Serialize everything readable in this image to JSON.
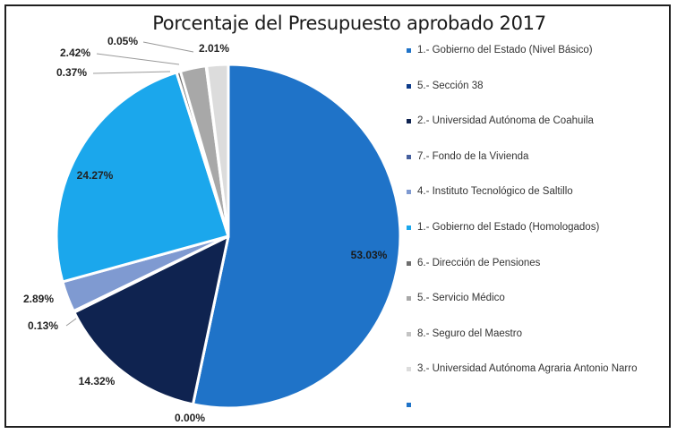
{
  "chart_data": {
    "type": "pie",
    "title": "Porcentaje del Presupuesto aprobado 2017",
    "slices": [
      {
        "label": "1.- Gobierno del Estado (Nivel Básico)",
        "value": 53.03,
        "label_text": "53.03%",
        "color": "#1f73c8"
      },
      {
        "label": "5.- Sección 38",
        "value": 0.0,
        "label_text": "0.00%",
        "color": "#0d3b8a"
      },
      {
        "label": "2.- Universidad Autónoma de Coahuila",
        "value": 14.32,
        "label_text": "14.32%",
        "color": "#0f2350"
      },
      {
        "label": "7.- Fondo de la Vivienda",
        "value": 0.13,
        "label_text": "0.13%",
        "color": "#46609e"
      },
      {
        "label": "4.- Instituto Tecnológico de Saltillo",
        "value": 2.89,
        "label_text": "2.89%",
        "color": "#7f9ad1"
      },
      {
        "label": "1.- Gobierno del Estado (Homologados)",
        "value": 24.27,
        "label_text": "24.27%",
        "color": "#1ba7ec"
      },
      {
        "label": "6.- Dirección de Pensiones",
        "value": 0.37,
        "label_text": "0.37%",
        "color": "#6e6e6e"
      },
      {
        "label": "5.- Servicio Médico",
        "value": 2.42,
        "label_text": "2.42%",
        "color": "#a8a8a8"
      },
      {
        "label": "8.- Seguro del Maestro",
        "value": 0.05,
        "label_text": "0.05%",
        "color": "#c4c4c4"
      },
      {
        "label": "3.- Universidad Autónoma Agraria Antonio Narro",
        "value": 2.01,
        "label_text": "2.01%",
        "color": "#dcdcdc"
      }
    ],
    "legend_position": "right"
  },
  "legend_extra": "-"
}
